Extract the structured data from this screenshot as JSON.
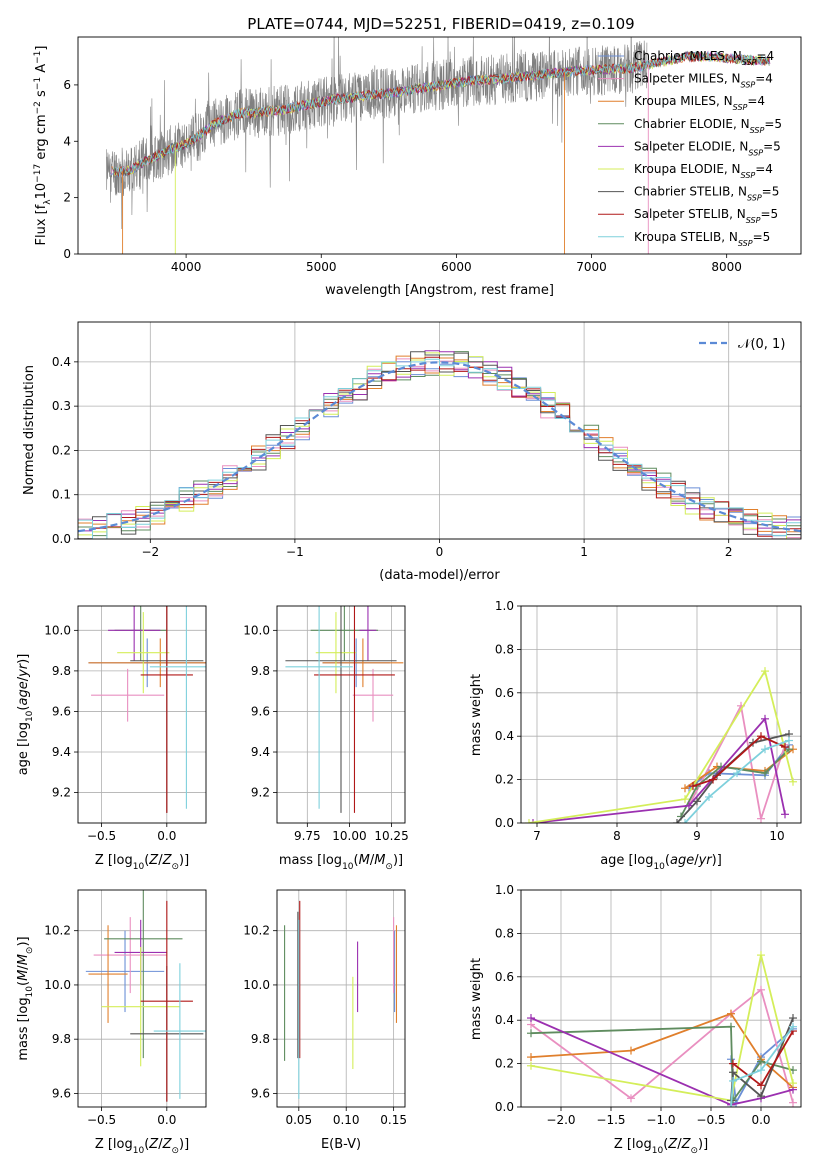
{
  "figure_title": "PLATE=0744, MJD=52251, FIBERID=0419, z=0.109",
  "model_colors": {
    "Chabrier MILES": "#6b8fd6",
    "Salpeter MILES": "#e98fc0",
    "Kroupa MILES": "#e07f2c",
    "Chabrier ELODIE": "#5f8c5f",
    "Salpeter ELODIE": "#9b30b0",
    "Kroupa ELODIE": "#d4ee5a",
    "Chabrier STELIB": "#555555",
    "Salpeter STELIB": "#b01818",
    "Kroupa STELIB": "#7ed0dc",
    "data": "#808080"
  },
  "chart_data": [
    {
      "id": "spectrum",
      "type": "line",
      "title": "PLATE=0744, MJD=52251, FIBERID=0419, z=0.109",
      "xlabel": "wavelength [Angstrom, rest frame]",
      "ylabel": "Flux [f_λ 10^-17 erg cm^-2 s^-1 A^-1]",
      "xlim": [
        3200,
        8550
      ],
      "ylim": [
        0,
        7.7
      ],
      "xticks": [
        4000,
        5000,
        6000,
        7000,
        8000
      ],
      "yticks": [
        0,
        2,
        4,
        6
      ],
      "grid": false,
      "legend_position": "top-right",
      "continuum": {
        "x": [
          3400,
          3500,
          3600,
          3700,
          3800,
          3900,
          4000,
          4100,
          4200,
          4300,
          4400,
          4500,
          4700,
          4900,
          5100,
          5300,
          5500,
          5700,
          5900,
          6100,
          6300,
          6500,
          6700,
          6900,
          7100,
          7300,
          7500,
          7700,
          7900,
          8100,
          8300
        ],
        "y": [
          3.0,
          2.9,
          3.0,
          3.3,
          3.5,
          3.75,
          3.9,
          4.2,
          4.6,
          4.8,
          5.0,
          5.0,
          5.1,
          5.3,
          5.5,
          5.6,
          5.7,
          5.85,
          6.0,
          6.15,
          6.2,
          6.3,
          6.4,
          6.5,
          6.55,
          6.6,
          6.8,
          7.0,
          7.0,
          6.9,
          6.85
        ]
      },
      "data_range": [
        3410,
        7410
      ],
      "models_range": [
        3440,
        8320
      ],
      "series": [
        {
          "name": "Chabrier MILES, N_SSP=4"
        },
        {
          "name": "Salpeter MILES, N_SSP=4"
        },
        {
          "name": "Kroupa MILES, N_SSP=4"
        },
        {
          "name": "Chabrier ELODIE, N_SSP=5"
        },
        {
          "name": "Salpeter ELODIE, N_SSP=5"
        },
        {
          "name": "Kroupa ELODIE, N_SSP=4"
        },
        {
          "name": "Chabrier STELIB, N_SSP=5"
        },
        {
          "name": "Salpeter STELIB, N_SSP=5"
        },
        {
          "name": "Kroupa STELIB, N_SSP=5"
        }
      ]
    },
    {
      "id": "residuals",
      "type": "line",
      "xlabel": "(data-model)/error",
      "ylabel": "Normed distribution",
      "xlim": [
        -2.5,
        2.5
      ],
      "ylim": [
        0,
        0.49
      ],
      "xticks": [
        -2,
        -1,
        0,
        1,
        2
      ],
      "yticks": [
        0.0,
        0.1,
        0.2,
        0.3,
        0.4
      ],
      "grid": true,
      "legend_position": "top-right",
      "normal_curve": {
        "name": "N(0,1)",
        "mean": 0,
        "sigma": 1
      },
      "bin_width": 0.1,
      "series_seeds": [
        1,
        2,
        3,
        4,
        5,
        6,
        7,
        8,
        9
      ]
    },
    {
      "id": "age_vs_Z",
      "type": "scatter",
      "xlabel": "Z [log10(Z/Z⊙)]",
      "ylabel": "age [log10(age/yr)]",
      "xlim": [
        -0.68,
        0.3
      ],
      "ylim": [
        9.05,
        10.12
      ],
      "xticks": [
        -0.5,
        0.0
      ],
      "yticks": [
        9.2,
        9.4,
        9.6,
        9.8,
        10.0
      ],
      "grid": true,
      "points": [
        {
          "x": -0.15,
          "y": 9.84,
          "xerr": 0.45,
          "yerr": 0.12
        },
        {
          "x": -0.3,
          "y": 9.68,
          "xerr": 0.28,
          "yerr": 0.13
        },
        {
          "x": -0.05,
          "y": 9.84,
          "xerr": 0.55,
          "yerr": 0.12
        },
        {
          "x": -0.2,
          "y": 10.0,
          "xerr": 0.2,
          "yerr": 0.15
        },
        {
          "x": -0.25,
          "y": 10.0,
          "xerr": 0.2,
          "yerr": 0.15
        },
        {
          "x": -0.18,
          "y": 9.89,
          "xerr": 0.2,
          "yerr": 0.2
        },
        {
          "x": 0.0,
          "y": 9.85,
          "xerr": 0.28,
          "yerr": 0.75
        },
        {
          "x": 0.0,
          "y": 9.78,
          "xerr": 0.2,
          "yerr": 0.68
        },
        {
          "x": 0.15,
          "y": 9.82,
          "xerr": 0.28,
          "yerr": 0.7
        }
      ]
    },
    {
      "id": "age_vs_mass",
      "type": "scatter",
      "xlabel": "mass [log10(M/M⊙)]",
      "ylabel": "",
      "xlim": [
        9.57,
        10.33
      ],
      "ylim": [
        9.05,
        10.12
      ],
      "xticks": [
        9.75,
        10.0,
        10.25
      ],
      "yticks": [
        9.2,
        9.4,
        9.6,
        9.8,
        10.0
      ],
      "grid": true,
      "points": [
        {
          "x": 10.04,
          "y": 9.84,
          "xerr": 0.2,
          "yerr": 0.12
        },
        {
          "x": 10.14,
          "y": 9.68,
          "xerr": 0.12,
          "yerr": 0.13
        },
        {
          "x": 10.08,
          "y": 9.84,
          "xerr": 0.24,
          "yerr": 0.12
        },
        {
          "x": 9.97,
          "y": 10.0,
          "xerr": 0.2,
          "yerr": 0.15
        },
        {
          "x": 10.11,
          "y": 10.0,
          "xerr": 0.05,
          "yerr": 0.15
        },
        {
          "x": 9.92,
          "y": 9.89,
          "xerr": 0.12,
          "yerr": 0.2
        },
        {
          "x": 9.95,
          "y": 9.85,
          "xerr": 0.33,
          "yerr": 0.75
        },
        {
          "x": 10.03,
          "y": 9.78,
          "xerr": 0.24,
          "yerr": 0.68
        },
        {
          "x": 9.82,
          "y": 9.82,
          "xerr": 0.2,
          "yerr": 0.7
        }
      ]
    },
    {
      "id": "mass_weight_vs_age",
      "type": "line",
      "xlabel": "age [log10(age/yr)]",
      "ylabel": "mass weight",
      "xlim": [
        6.8,
        10.3
      ],
      "ylim": [
        0,
        1.0
      ],
      "xticks": [
        7,
        8,
        9,
        10
      ],
      "yticks": [
        0.0,
        0.2,
        0.4,
        0.6,
        0.8,
        1.0
      ],
      "grid": true,
      "series": [
        {
          "x": [
            8.9,
            9.15,
            9.85,
            10.15
          ],
          "y": [
            0.16,
            0.23,
            0.22,
            0.36
          ]
        },
        {
          "x": [
            8.9,
            9.55,
            9.8,
            10.1
          ],
          "y": [
            0.08,
            0.54,
            0.02,
            0.36
          ]
        },
        {
          "x": [
            8.85,
            9.25,
            9.85,
            10.2
          ],
          "y": [
            0.16,
            0.26,
            0.24,
            0.34
          ]
        },
        {
          "x": [
            8.8,
            9.0,
            9.3,
            9.85,
            10.15
          ],
          "y": [
            0.03,
            0.17,
            0.26,
            0.23,
            0.34
          ]
        },
        {
          "x": [
            6.95,
            8.9,
            9.85,
            10.1
          ],
          "y": [
            0.0,
            0.08,
            0.48,
            0.04
          ]
        },
        {
          "x": [
            6.9,
            8.85,
            9.85,
            10.2
          ],
          "y": [
            0.0,
            0.11,
            0.7,
            0.19
          ]
        },
        {
          "x": [
            8.75,
            9.0,
            9.25,
            9.7,
            10.15
          ],
          "y": [
            0.0,
            0.1,
            0.22,
            0.37,
            0.41
          ]
        },
        {
          "x": [
            8.95,
            9.2,
            9.8,
            10.1
          ],
          "y": [
            0.17,
            0.2,
            0.4,
            0.35
          ]
        },
        {
          "x": [
            8.85,
            9.15,
            9.5,
            9.85,
            10.15
          ],
          "y": [
            0.0,
            0.12,
            0.23,
            0.34,
            0.38
          ]
        }
      ]
    },
    {
      "id": "mass_vs_Z",
      "type": "scatter",
      "xlabel": "Z [log10(Z/Z⊙)]",
      "ylabel": "mass [log10(M/M⊙)]",
      "xlim": [
        -0.68,
        0.3
      ],
      "ylim": [
        9.55,
        10.35
      ],
      "xticks": [
        -0.5,
        0.0
      ],
      "yticks": [
        9.6,
        9.8,
        10.0,
        10.2
      ],
      "grid": true,
      "points": [
        {
          "x": -0.32,
          "y": 10.05,
          "xerr": 0.3,
          "yerr": 0.15
        },
        {
          "x": -0.28,
          "y": 10.11,
          "xerr": 0.28,
          "yerr": 0.14
        },
        {
          "x": -0.45,
          "y": 10.04,
          "xerr": 0.15,
          "yerr": 0.18
        },
        {
          "x": -0.18,
          "y": 10.17,
          "xerr": 0.3,
          "yerr": 0.44
        },
        {
          "x": -0.2,
          "y": 10.12,
          "xerr": 0.2,
          "yerr": 0.12
        },
        {
          "x": -0.2,
          "y": 9.92,
          "xerr": 0.3,
          "yerr": 0.22
        },
        {
          "x": 0.0,
          "y": 9.82,
          "xerr": 0.28,
          "yerr": 0.25
        },
        {
          "x": 0.0,
          "y": 9.94,
          "xerr": 0.2,
          "yerr": 0.37
        },
        {
          "x": 0.1,
          "y": 9.83,
          "xerr": 0.2,
          "yerr": 0.25
        }
      ]
    },
    {
      "id": "mass_vs_ebv",
      "type": "scatter",
      "xlabel": "E(B-V)",
      "ylabel": "",
      "xlim": [
        0.027,
        0.162
      ],
      "ylim": [
        9.55,
        10.35
      ],
      "xticks": [
        0.05,
        0.1,
        0.15
      ],
      "yticks": [
        9.6,
        9.8,
        10.0,
        10.2
      ],
      "grid": true,
      "points": [
        {
          "x": 0.151,
          "y": 10.05,
          "yerr": 0.15
        },
        {
          "x": 0.15,
          "y": 10.11,
          "yerr": 0.14
        },
        {
          "x": 0.153,
          "y": 10.04,
          "yerr": 0.18
        },
        {
          "x": 0.035,
          "y": 9.97,
          "yerr": 0.25
        },
        {
          "x": 0.112,
          "y": 10.03,
          "yerr": 0.13
        },
        {
          "x": 0.107,
          "y": 9.86,
          "yerr": 0.17
        },
        {
          "x": 0.049,
          "y": 10.0,
          "yerr": 0.27
        },
        {
          "x": 0.051,
          "y": 10.02,
          "yerr": 0.29
        },
        {
          "x": 0.05,
          "y": 9.91,
          "yerr": 0.33
        }
      ]
    },
    {
      "id": "mass_weight_vs_Z",
      "type": "line",
      "xlabel": "Z [log10(Z/Z⊙)]",
      "ylabel": "mass weight",
      "xlim": [
        -2.4,
        0.4
      ],
      "ylim": [
        0,
        1.0
      ],
      "xticks": [
        -2.0,
        -1.5,
        -1.0,
        -0.5,
        0.0
      ],
      "yticks": [
        0.0,
        0.2,
        0.4,
        0.6,
        0.8,
        1.0
      ],
      "grid": true,
      "series": [
        {
          "x": [
            -0.3,
            -0.25,
            0.0,
            0.32
          ],
          "y": [
            0.22,
            0.02,
            0.23,
            0.36
          ]
        },
        {
          "x": [
            -2.3,
            -1.3,
            -0.3,
            0.0,
            0.32
          ],
          "y": [
            0.38,
            0.04,
            0.43,
            0.54,
            0.02
          ]
        },
        {
          "x": [
            -2.3,
            -1.3,
            -0.3,
            0.0,
            0.32
          ],
          "y": [
            0.23,
            0.26,
            0.43,
            0.22,
            0.09
          ]
        },
        {
          "x": [
            -2.3,
            -0.3,
            -0.28,
            0.0,
            0.32
          ],
          "y": [
            0.34,
            0.37,
            0.03,
            0.21,
            0.17
          ]
        },
        {
          "x": [
            -2.3,
            -0.3,
            0.0,
            0.32
          ],
          "y": [
            0.41,
            0.01,
            0.04,
            0.08
          ]
        },
        {
          "x": [
            -2.3,
            -0.3,
            0.0,
            0.32
          ],
          "y": [
            0.19,
            0.03,
            0.7,
            0.11
          ]
        },
        {
          "x": [
            -0.3,
            -0.28,
            0.0,
            0.32
          ],
          "y": [
            0.03,
            0.16,
            0.05,
            0.41
          ]
        },
        {
          "x": [
            -0.28,
            0.0,
            0.32
          ],
          "y": [
            0.2,
            0.1,
            0.35
          ]
        },
        {
          "x": [
            -0.3,
            -0.28,
            0.0,
            0.32
          ],
          "y": [
            0.0,
            0.12,
            0.17,
            0.37
          ]
        }
      ]
    }
  ]
}
